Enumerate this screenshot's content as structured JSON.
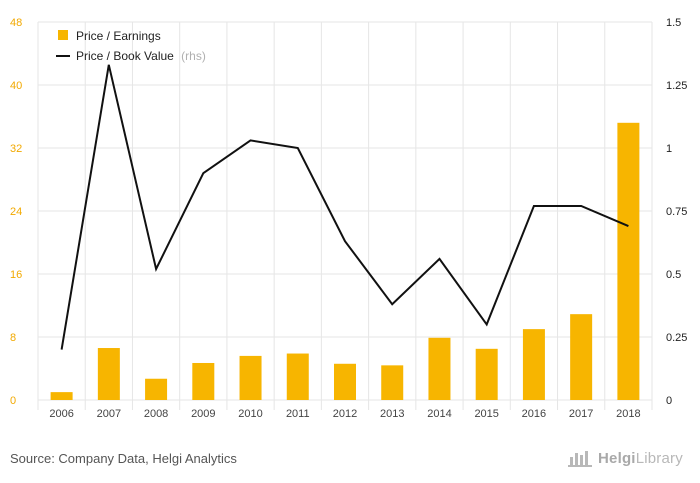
{
  "chart_data": {
    "type": "bar+line",
    "categories": [
      "2006",
      "2007",
      "2008",
      "2009",
      "2010",
      "2011",
      "2012",
      "2013",
      "2014",
      "2015",
      "2016",
      "2017",
      "2018"
    ],
    "series": [
      {
        "name": "Price / Earnings",
        "type": "bar",
        "axis": "left",
        "color": "#f7b500",
        "values": [
          1.0,
          6.6,
          2.7,
          4.7,
          5.6,
          5.9,
          4.6,
          4.4,
          7.9,
          6.5,
          9.0,
          10.9,
          35.2
        ]
      },
      {
        "name": "Price / Book Value",
        "name_suffix": "(rhs)",
        "type": "line",
        "axis": "right",
        "color": "#111111",
        "values": [
          0.2,
          1.33,
          0.52,
          0.9,
          1.03,
          1.0,
          0.63,
          0.38,
          0.56,
          0.3,
          0.77,
          0.77,
          0.69
        ]
      }
    ],
    "y_left": {
      "ticks": [
        "0",
        "8",
        "16",
        "24",
        "32",
        "40",
        "48"
      ],
      "min": 0,
      "max": 48
    },
    "y_right": {
      "ticks": [
        "0",
        "0.25",
        "0.5",
        "0.75",
        "1",
        "1.25",
        "1.5"
      ],
      "min": 0,
      "max": 1.5
    },
    "grid": true,
    "legend_position": "top-left"
  },
  "footer": {
    "source": "Source: Company Data, Helgi Analytics",
    "logo_brand": "Helgi",
    "logo_suffix": "Library"
  },
  "colors": {
    "bar": "#f7b500",
    "line": "#111111",
    "left_axis_text": "#f2a900",
    "grid": "#e6e6e6"
  },
  "icons": {
    "logo": "building-icon"
  }
}
